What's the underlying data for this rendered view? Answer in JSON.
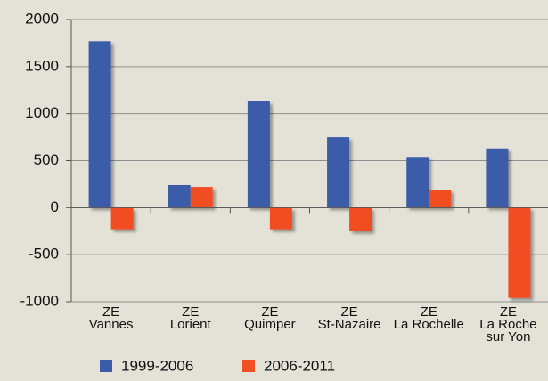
{
  "chart_data": {
    "type": "bar",
    "categories": [
      "ZE\nVannes",
      "ZE\nLorient",
      "ZE\nQuimper",
      "ZE\nSt-Nazaire",
      "ZE\nLa Rochelle",
      "ZE\nLa Roche\nsur Yon"
    ],
    "series": [
      {
        "name": "1999-2006",
        "color": "#3b5ba9",
        "values": [
          1770,
          240,
          1130,
          750,
          540,
          630
        ]
      },
      {
        "name": "2006-2011",
        "color": "#f04e23",
        "values": [
          -230,
          220,
          -230,
          -250,
          190,
          -960
        ]
      }
    ],
    "ylim": [
      -1000,
      2000
    ],
    "yticks": [
      -1000,
      -500,
      0,
      500,
      1000,
      1500,
      2000
    ],
    "grid": true,
    "legend": "bottom"
  }
}
